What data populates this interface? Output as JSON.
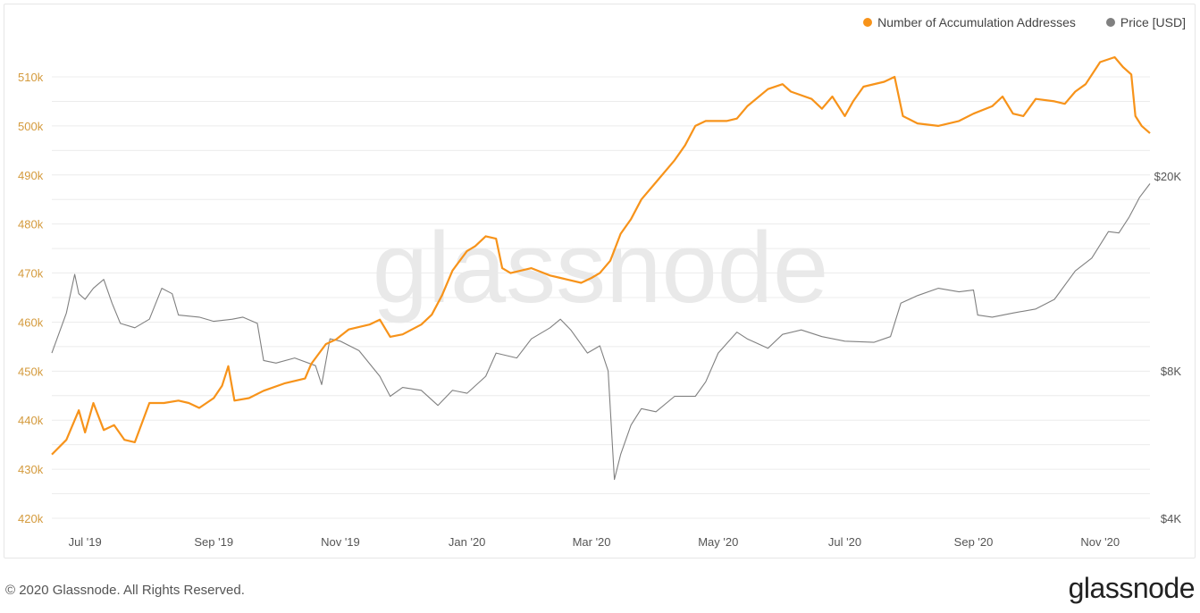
{
  "colors": {
    "accumulation": "#f7931a",
    "price": "#808080",
    "grid": "#ececec",
    "left_axis": "#d49a3c",
    "right_axis": "#555555"
  },
  "legend": [
    {
      "label": "Number of Accumulation Addresses",
      "color": "#f7931a"
    },
    {
      "label": "Price [USD]",
      "color": "#808080"
    }
  ],
  "watermark": "glassnode",
  "footer": {
    "copyright": "© 2020 Glassnode. All Rights Reserved.",
    "logo": "glassnode"
  },
  "chart_data": {
    "type": "line",
    "x_ticks": [
      "Jul '19",
      "Sep '19",
      "Nov '19",
      "Jan '20",
      "Mar '20",
      "May '20",
      "Jul '20",
      "Sep '20",
      "Nov '20"
    ],
    "x_tick_dates": [
      "2019-07-01",
      "2019-09-01",
      "2019-11-01",
      "2020-01-01",
      "2020-03-01",
      "2020-05-01",
      "2020-07-01",
      "2020-09-01",
      "2020-11-01"
    ],
    "x_range": [
      "2019-06-15",
      "2020-11-25"
    ],
    "y_left": {
      "ticks": [
        "420k",
        "430k",
        "440k",
        "450k",
        "460k",
        "470k",
        "480k",
        "490k",
        "500k",
        "510k"
      ],
      "min": 420000,
      "max": 510000
    },
    "y_right": {
      "ticks": [
        "$4K",
        "$8K",
        "$20K"
      ],
      "tick_values": [
        4000,
        8000,
        20000
      ],
      "scale": "log"
    },
    "grid": true,
    "legend_position": "top-right",
    "series": [
      {
        "name": "Number of Accumulation Addresses",
        "axis": "left",
        "points": [
          [
            "2019-06-15",
            433000
          ],
          [
            "2019-06-22",
            436000
          ],
          [
            "2019-06-28",
            442000
          ],
          [
            "2019-07-01",
            437500
          ],
          [
            "2019-07-05",
            443500
          ],
          [
            "2019-07-10",
            438000
          ],
          [
            "2019-07-15",
            439000
          ],
          [
            "2019-07-20",
            436000
          ],
          [
            "2019-07-25",
            435500
          ],
          [
            "2019-08-01",
            443500
          ],
          [
            "2019-08-08",
            443500
          ],
          [
            "2019-08-15",
            444000
          ],
          [
            "2019-08-20",
            443500
          ],
          [
            "2019-08-25",
            442500
          ],
          [
            "2019-09-01",
            444500
          ],
          [
            "2019-09-05",
            447000
          ],
          [
            "2019-09-08",
            451000
          ],
          [
            "2019-09-11",
            444000
          ],
          [
            "2019-09-18",
            444500
          ],
          [
            "2019-09-25",
            446000
          ],
          [
            "2019-10-05",
            447500
          ],
          [
            "2019-10-15",
            448500
          ],
          [
            "2019-10-18",
            451500
          ],
          [
            "2019-10-25",
            455500
          ],
          [
            "2019-10-30",
            456500
          ],
          [
            "2019-11-05",
            458500
          ],
          [
            "2019-11-15",
            459500
          ],
          [
            "2019-11-20",
            460500
          ],
          [
            "2019-11-25",
            457000
          ],
          [
            "2019-12-01",
            457500
          ],
          [
            "2019-12-10",
            459500
          ],
          [
            "2019-12-15",
            461500
          ],
          [
            "2019-12-20",
            465500
          ],
          [
            "2019-12-25",
            470500
          ],
          [
            "2020-01-01",
            474500
          ],
          [
            "2020-01-05",
            475500
          ],
          [
            "2020-01-10",
            477500
          ],
          [
            "2020-01-15",
            477000
          ],
          [
            "2020-01-18",
            471000
          ],
          [
            "2020-01-22",
            470000
          ],
          [
            "2020-02-01",
            471000
          ],
          [
            "2020-02-10",
            469500
          ],
          [
            "2020-02-15",
            469000
          ],
          [
            "2020-02-25",
            468000
          ],
          [
            "2020-03-01",
            469000
          ],
          [
            "2020-03-05",
            470000
          ],
          [
            "2020-03-10",
            472500
          ],
          [
            "2020-03-15",
            478000
          ],
          [
            "2020-03-20",
            481000
          ],
          [
            "2020-03-25",
            485000
          ],
          [
            "2020-04-01",
            488500
          ],
          [
            "2020-04-10",
            493000
          ],
          [
            "2020-04-15",
            496000
          ],
          [
            "2020-04-20",
            500000
          ],
          [
            "2020-04-25",
            501000
          ],
          [
            "2020-05-05",
            501000
          ],
          [
            "2020-05-10",
            501500
          ],
          [
            "2020-05-15",
            504000
          ],
          [
            "2020-05-25",
            507500
          ],
          [
            "2020-06-01",
            508500
          ],
          [
            "2020-06-05",
            507000
          ],
          [
            "2020-06-15",
            505500
          ],
          [
            "2020-06-20",
            503500
          ],
          [
            "2020-06-25",
            506000
          ],
          [
            "2020-07-01",
            502000
          ],
          [
            "2020-07-05",
            505000
          ],
          [
            "2020-07-10",
            508000
          ],
          [
            "2020-07-20",
            509000
          ],
          [
            "2020-07-25",
            510000
          ],
          [
            "2020-07-29",
            502000
          ],
          [
            "2020-08-05",
            500500
          ],
          [
            "2020-08-15",
            500000
          ],
          [
            "2020-08-25",
            501000
          ],
          [
            "2020-09-01",
            502500
          ],
          [
            "2020-09-10",
            504000
          ],
          [
            "2020-09-15",
            506000
          ],
          [
            "2020-09-20",
            502500
          ],
          [
            "2020-09-25",
            502000
          ],
          [
            "2020-10-01",
            505500
          ],
          [
            "2020-10-10",
            505000
          ],
          [
            "2020-10-15",
            504500
          ],
          [
            "2020-10-20",
            507000
          ],
          [
            "2020-10-25",
            508500
          ],
          [
            "2020-11-01",
            513000
          ],
          [
            "2020-11-08",
            514000
          ],
          [
            "2020-11-12",
            512000
          ],
          [
            "2020-11-16",
            510500
          ],
          [
            "2020-11-18",
            502000
          ],
          [
            "2020-11-21",
            500000
          ],
          [
            "2020-11-25",
            498500
          ]
        ]
      },
      {
        "name": "Price [USD]",
        "axis": "right",
        "points": [
          [
            "2019-06-15",
            8700
          ],
          [
            "2019-06-22",
            10500
          ],
          [
            "2019-06-26",
            12600
          ],
          [
            "2019-06-28",
            11500
          ],
          [
            "2019-07-01",
            11200
          ],
          [
            "2019-07-05",
            11800
          ],
          [
            "2019-07-10",
            12300
          ],
          [
            "2019-07-14",
            11000
          ],
          [
            "2019-07-18",
            10000
          ],
          [
            "2019-07-25",
            9800
          ],
          [
            "2019-08-01",
            10200
          ],
          [
            "2019-08-07",
            11800
          ],
          [
            "2019-08-12",
            11500
          ],
          [
            "2019-08-15",
            10400
          ],
          [
            "2019-08-25",
            10300
          ],
          [
            "2019-09-01",
            10100
          ],
          [
            "2019-09-10",
            10200
          ],
          [
            "2019-09-15",
            10300
          ],
          [
            "2019-09-22",
            10000
          ],
          [
            "2019-09-25",
            8400
          ],
          [
            "2019-10-01",
            8300
          ],
          [
            "2019-10-10",
            8500
          ],
          [
            "2019-10-20",
            8200
          ],
          [
            "2019-10-23",
            7500
          ],
          [
            "2019-10-27",
            9300
          ],
          [
            "2019-11-01",
            9200
          ],
          [
            "2019-11-10",
            8800
          ],
          [
            "2019-11-20",
            7800
          ],
          [
            "2019-11-25",
            7100
          ],
          [
            "2019-12-01",
            7400
          ],
          [
            "2019-12-10",
            7300
          ],
          [
            "2019-12-18",
            6800
          ],
          [
            "2019-12-25",
            7300
          ],
          [
            "2020-01-01",
            7200
          ],
          [
            "2020-01-10",
            7800
          ],
          [
            "2020-01-15",
            8700
          ],
          [
            "2020-01-25",
            8500
          ],
          [
            "2020-02-01",
            9300
          ],
          [
            "2020-02-10",
            9800
          ],
          [
            "2020-02-15",
            10200
          ],
          [
            "2020-02-20",
            9700
          ],
          [
            "2020-02-28",
            8700
          ],
          [
            "2020-03-05",
            9000
          ],
          [
            "2020-03-09",
            8000
          ],
          [
            "2020-03-12",
            4800
          ],
          [
            "2020-03-15",
            5400
          ],
          [
            "2020-03-20",
            6200
          ],
          [
            "2020-03-25",
            6700
          ],
          [
            "2020-04-01",
            6600
          ],
          [
            "2020-04-10",
            7100
          ],
          [
            "2020-04-20",
            7100
          ],
          [
            "2020-04-25",
            7600
          ],
          [
            "2020-05-01",
            8700
          ],
          [
            "2020-05-10",
            9600
          ],
          [
            "2020-05-15",
            9300
          ],
          [
            "2020-05-25",
            8900
          ],
          [
            "2020-06-01",
            9500
          ],
          [
            "2020-06-10",
            9700
          ],
          [
            "2020-06-20",
            9400
          ],
          [
            "2020-07-01",
            9200
          ],
          [
            "2020-07-15",
            9150
          ],
          [
            "2020-07-23",
            9400
          ],
          [
            "2020-07-28",
            11000
          ],
          [
            "2020-08-05",
            11400
          ],
          [
            "2020-08-15",
            11800
          ],
          [
            "2020-08-25",
            11600
          ],
          [
            "2020-09-01",
            11700
          ],
          [
            "2020-09-03",
            10400
          ],
          [
            "2020-09-10",
            10300
          ],
          [
            "2020-09-20",
            10500
          ],
          [
            "2020-10-01",
            10700
          ],
          [
            "2020-10-10",
            11200
          ],
          [
            "2020-10-20",
            12800
          ],
          [
            "2020-10-28",
            13600
          ],
          [
            "2020-11-05",
            15400
          ],
          [
            "2020-11-10",
            15300
          ],
          [
            "2020-11-15",
            16500
          ],
          [
            "2020-11-20",
            18100
          ],
          [
            "2020-11-25",
            19300
          ]
        ]
      }
    ]
  }
}
